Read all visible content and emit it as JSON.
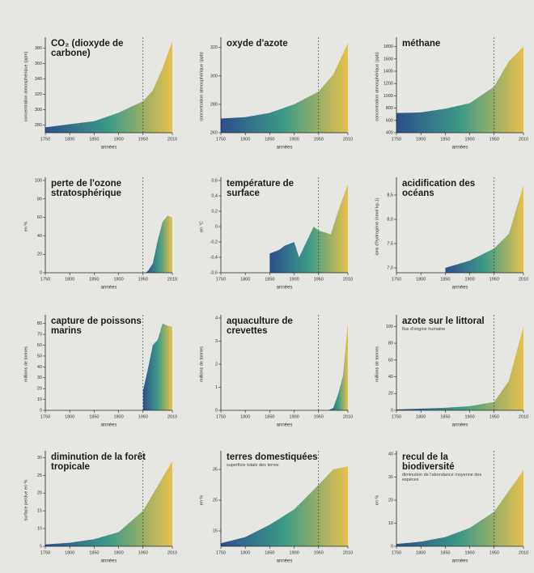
{
  "chart_data": [
    {
      "type": "area",
      "title": "CO₂ (dioxyde de carbone)",
      "xlabel": "années",
      "ylabel": "concentration atmosphérique (ppm)",
      "x": [
        1750,
        1800,
        1850,
        1900,
        1950,
        1970,
        1990,
        2010
      ],
      "values": [
        277,
        281,
        285,
        296,
        311,
        325,
        354,
        389
      ],
      "xlim": [
        1750,
        2010
      ],
      "ylim": [
        270,
        390
      ],
      "xticks": [
        1750,
        1800,
        1850,
        1900,
        1950,
        2010
      ],
      "yticks": [
        280,
        300,
        320,
        340,
        360,
        380
      ],
      "vline": 1950,
      "colors": [
        "#2c4f8f",
        "#3c9a86",
        "#e6c14c"
      ]
    },
    {
      "type": "area",
      "title": "oxyde d'azote",
      "xlabel": "années",
      "ylabel": "concentration atmosphérique (ppb)",
      "x": [
        1750,
        1800,
        1850,
        1900,
        1950,
        1980,
        2010
      ],
      "values": [
        270,
        271,
        274,
        280,
        289,
        301,
        323
      ],
      "xlim": [
        1750,
        2010
      ],
      "ylim": [
        260,
        325
      ],
      "xticks": [
        1750,
        1800,
        1850,
        1900,
        1950,
        2010
      ],
      "yticks": [
        260,
        280,
        300,
        320
      ],
      "vline": 1950,
      "colors": [
        "#2c4f8f",
        "#3c9a86",
        "#e6c14c"
      ]
    },
    {
      "type": "area",
      "title": "méthane",
      "xlabel": "années",
      "ylabel": "concentration atmosphérique (ppb)",
      "x": [
        1750,
        1800,
        1850,
        1900,
        1950,
        1980,
        2010
      ],
      "values": [
        720,
        730,
        790,
        880,
        1150,
        1560,
        1800
      ],
      "xlim": [
        1750,
        2010
      ],
      "ylim": [
        400,
        1900
      ],
      "xticks": [
        1750,
        1800,
        1850,
        1900,
        1950,
        2010
      ],
      "yticks": [
        400,
        600,
        800,
        1000,
        1200,
        1400,
        1600,
        1800
      ],
      "vline": 1950,
      "colors": [
        "#2c4f8f",
        "#3c9a86",
        "#e6c14c"
      ]
    },
    {
      "type": "area",
      "title": "perte de l'ozone stratosphérique",
      "xlabel": "années",
      "ylabel": "en %",
      "x": [
        1955,
        1960,
        1970,
        1980,
        1990,
        2000,
        2010
      ],
      "values": [
        0,
        2,
        10,
        35,
        55,
        62,
        60
      ],
      "xlim": [
        1750,
        2010
      ],
      "ylim": [
        0,
        100
      ],
      "xticks": [
        1750,
        1800,
        1850,
        1900,
        1950,
        2010
      ],
      "yticks": [
        0,
        20,
        40,
        60,
        80,
        100
      ],
      "vline": 1950,
      "colors": [
        "#2c4f8f",
        "#3c9a86",
        "#e6c14c"
      ]
    },
    {
      "type": "area",
      "title": "température de surface",
      "xlabel": "années",
      "ylabel": "en °C",
      "x": [
        1850,
        1870,
        1880,
        1900,
        1910,
        1940,
        1950,
        1975,
        1990,
        2010
      ],
      "values": [
        -0.35,
        -0.3,
        -0.25,
        -0.2,
        -0.4,
        0.0,
        -0.05,
        -0.1,
        0.2,
        0.55
      ],
      "xlim": [
        1750,
        2010
      ],
      "ylim": [
        -0.6,
        0.6
      ],
      "xticks": [
        1750,
        1800,
        1850,
        1900,
        1950,
        2010
      ],
      "yticks": [
        {
          "value": -0.6,
          "label": "-0,6"
        },
        {
          "value": -0.4,
          "label": "-0,4"
        },
        {
          "value": -0.2,
          "label": "-0,2"
        },
        0,
        {
          "value": 0.2,
          "label": "0,2"
        },
        {
          "value": 0.4,
          "label": "0,4"
        },
        {
          "value": 0.6,
          "label": "0,6"
        }
      ],
      "vline": 1950,
      "colors": [
        "#2c4f8f",
        "#3c9a86",
        "#e6c14c"
      ]
    },
    {
      "type": "area",
      "title": "acidification des océans",
      "xlabel": "années",
      "ylabel": "ions d'hydrogène (nmol kg-1)",
      "x": [
        1850,
        1900,
        1950,
        1980,
        2010
      ],
      "values": [
        7.0,
        7.15,
        7.4,
        7.7,
        8.7
      ],
      "xlim": [
        1750,
        2010
      ],
      "ylim": [
        6.9,
        8.8
      ],
      "xticks": [
        1750,
        1800,
        1850,
        1900,
        1950,
        2010
      ],
      "yticks": [
        {
          "value": 7.0,
          "label": "7,0"
        },
        {
          "value": 7.5,
          "label": "7,5"
        },
        {
          "value": 8.0,
          "label": "8,0"
        },
        {
          "value": 8.5,
          "label": "8,5"
        }
      ],
      "vline": 1950,
      "colors": [
        "#2c4f8f",
        "#3c9a86",
        "#e6c14c"
      ]
    },
    {
      "type": "area",
      "title": "capture de poissons marins",
      "xlabel": "années",
      "ylabel": "millions de tonnes",
      "x": [
        1950,
        1960,
        1970,
        1980,
        1990,
        2000,
        2010
      ],
      "values": [
        18,
        38,
        60,
        65,
        80,
        78,
        77
      ],
      "xlim": [
        1750,
        2010
      ],
      "ylim": [
        0,
        85
      ],
      "xticks": [
        1750,
        1800,
        1850,
        1900,
        1950,
        2010
      ],
      "yticks": [
        0,
        10,
        20,
        30,
        40,
        50,
        60,
        70,
        80
      ],
      "vline": 1950,
      "colors": [
        "#2c4f8f",
        "#3c9a86",
        "#e6c14c"
      ]
    },
    {
      "type": "area",
      "title": "aquaculture de crevettes",
      "xlabel": "années",
      "ylabel": "millions de tonnes",
      "x": [
        1970,
        1980,
        1990,
        2000,
        2010
      ],
      "values": [
        0,
        0.1,
        0.7,
        1.5,
        3.8
      ],
      "xlim": [
        1750,
        2010
      ],
      "ylim": [
        0,
        4
      ],
      "xticks": [
        1750,
        1800,
        1850,
        1900,
        1950,
        2010
      ],
      "yticks": [
        0,
        1,
        2,
        3,
        4
      ],
      "vline": 1950,
      "colors": [
        "#2c4f8f",
        "#3c9a86",
        "#e6c14c"
      ]
    },
    {
      "type": "area",
      "title": "azote sur le littoral",
      "subtitle": "flux d'origine humaine",
      "xlabel": "années",
      "ylabel": "millions de tonnes",
      "x": [
        1750,
        1800,
        1850,
        1900,
        1950,
        1980,
        2010
      ],
      "values": [
        1,
        2,
        3,
        5,
        10,
        35,
        100
      ],
      "xlim": [
        1750,
        2010
      ],
      "ylim": [
        0,
        110
      ],
      "xticks": [
        1750,
        1800,
        1850,
        1900,
        1950,
        2010
      ],
      "yticks": [
        0,
        20,
        40,
        60,
        80,
        100
      ],
      "vline": 1950,
      "colors": [
        "#2c4f8f",
        "#3c9a86",
        "#e6c14c"
      ]
    },
    {
      "type": "area",
      "title": "diminution de la forêt tropicale",
      "xlabel": "années",
      "ylabel": "surface perdue en %",
      "x": [
        1750,
        1800,
        1850,
        1900,
        1950,
        1980,
        2010
      ],
      "values": [
        5.5,
        6,
        7,
        9,
        15,
        22,
        29
      ],
      "xlim": [
        1750,
        2010
      ],
      "ylim": [
        5,
        31
      ],
      "xticks": [
        1750,
        1800,
        1850,
        1900,
        1950,
        2010
      ],
      "yticks": [
        5,
        10,
        15,
        20,
        25,
        30
      ],
      "vline": 1950,
      "colors": [
        "#2c4f8f",
        "#3c9a86",
        "#e6c14c"
      ]
    },
    {
      "type": "area",
      "title": "terres domestiquées",
      "subtitle": "superficie totale des terres",
      "xlabel": "années",
      "ylabel": "en %",
      "x": [
        1750,
        1800,
        1850,
        1900,
        1950,
        1980,
        2010
      ],
      "values": [
        11,
        13,
        17,
        22,
        30,
        35,
        36
      ],
      "xlim": [
        1750,
        2010
      ],
      "ylim": [
        10,
        40
      ],
      "xticks": [
        1750,
        1800,
        1850,
        1900,
        1950,
        2010
      ],
      "yticks": [
        15,
        25,
        35
      ],
      "vline": 1950,
      "colors": [
        "#2c4f8f",
        "#3c9a86",
        "#e6c14c"
      ]
    },
    {
      "type": "area",
      "title": "recul de la biodiversité",
      "subtitle": "diminution de l'abondance moyenne des espèces",
      "xlabel": "années",
      "ylabel": "en %",
      "x": [
        1750,
        1800,
        1850,
        1900,
        1950,
        1980,
        2010
      ],
      "values": [
        1,
        2,
        4,
        8,
        15,
        24,
        33
      ],
      "xlim": [
        1750,
        2010
      ],
      "ylim": [
        0,
        40
      ],
      "xticks": [
        1750,
        1800,
        1850,
        1900,
        1950,
        2010
      ],
      "yticks": [
        0,
        10,
        20,
        30,
        40
      ],
      "vline": 1950,
      "colors": [
        "#2c4f8f",
        "#3c9a86",
        "#e6c14c"
      ]
    }
  ]
}
